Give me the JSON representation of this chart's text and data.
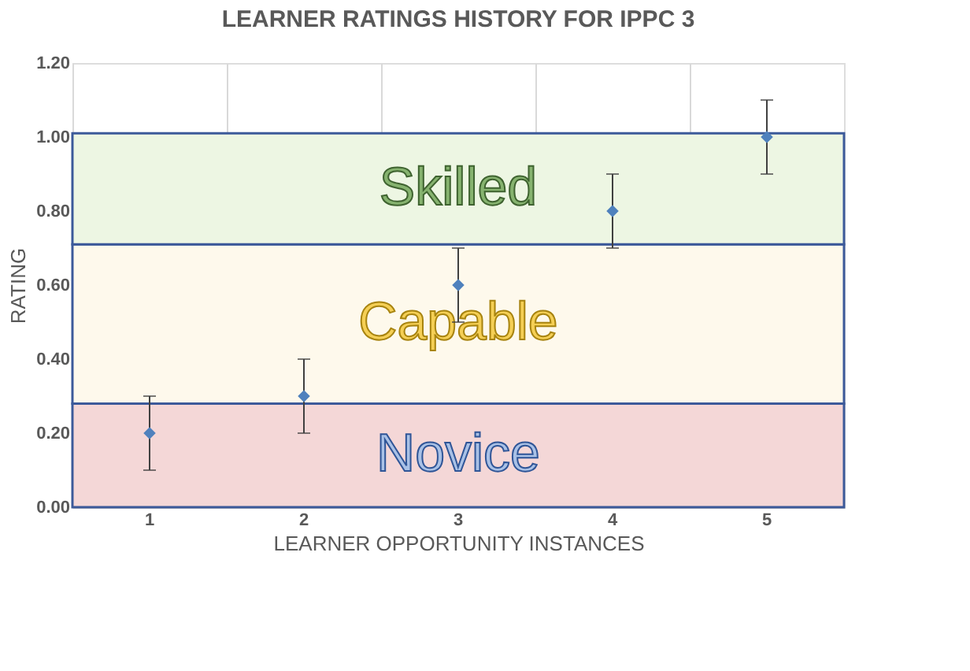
{
  "chart_data": {
    "type": "scatter",
    "title": "LEARNER RATINGS HISTORY FOR IPPC 3",
    "xlabel": "LEARNER OPPORTUNITY INSTANCES",
    "ylabel": "RATING",
    "categories": [
      "1",
      "2",
      "3",
      "4",
      "5"
    ],
    "series": [
      {
        "color": "#4f81bd",
        "values": [
          0.2,
          0.3,
          0.6,
          0.8,
          1.0
        ],
        "errors": [
          0.1,
          0.1,
          0.1,
          0.1,
          0.1
        ]
      }
    ],
    "ylim": [
      0,
      1.2
    ],
    "yticks": [
      {
        "value": 0,
        "label": "0.00"
      },
      {
        "value": 0.2,
        "label": "0.20"
      },
      {
        "value": 0.4,
        "label": "0.40"
      },
      {
        "value": 0.6,
        "label": "0.60"
      },
      {
        "value": 0.8,
        "label": "0.80"
      },
      {
        "value": 1.0,
        "label": "1.00"
      },
      {
        "value": 1.2,
        "label": "1.20"
      }
    ],
    "bands": [
      {
        "axis": "y",
        "from": 0,
        "to": 0.28,
        "label": "Novice",
        "color": "#f4d7d7"
      },
      {
        "axis": "y",
        "from": 0.28,
        "to": 0.71,
        "label": "Capable",
        "color": "#fef9ec"
      },
      {
        "axis": "y",
        "from": 0.71,
        "to": 1.01,
        "label": "Skilled",
        "color": "#edf6e3"
      }
    ],
    "marker": "diamond",
    "grid": "x",
    "legend": false
  }
}
